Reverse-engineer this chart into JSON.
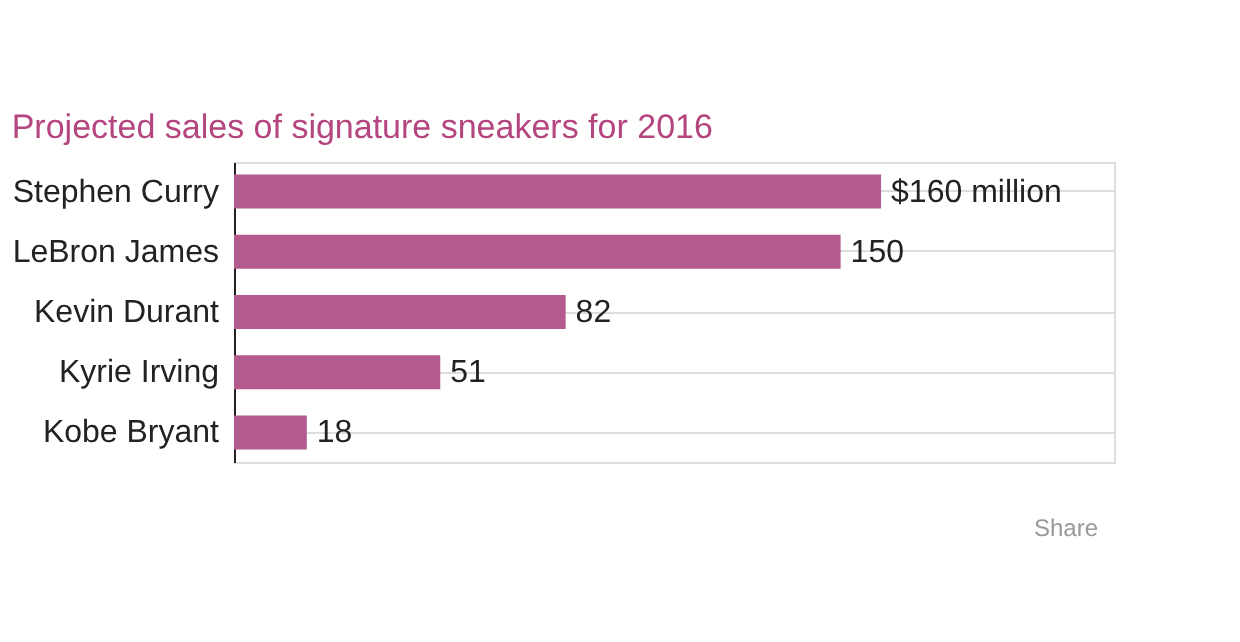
{
  "chart_data": {
    "type": "bar",
    "orientation": "horizontal",
    "title": "Projected sales of signature sneakers for 2016",
    "categories": [
      "Stephen Curry",
      "LeBron James",
      "Kevin Durant",
      "Kyrie Irving",
      "Kobe Bryant"
    ],
    "values": [
      160,
      150,
      82,
      51,
      18
    ],
    "value_labels": [
      "$160 million",
      "150",
      "82",
      "51",
      "18"
    ],
    "color": "#b35a8e",
    "grid": "y",
    "annotations": [
      "Share"
    ]
  }
}
